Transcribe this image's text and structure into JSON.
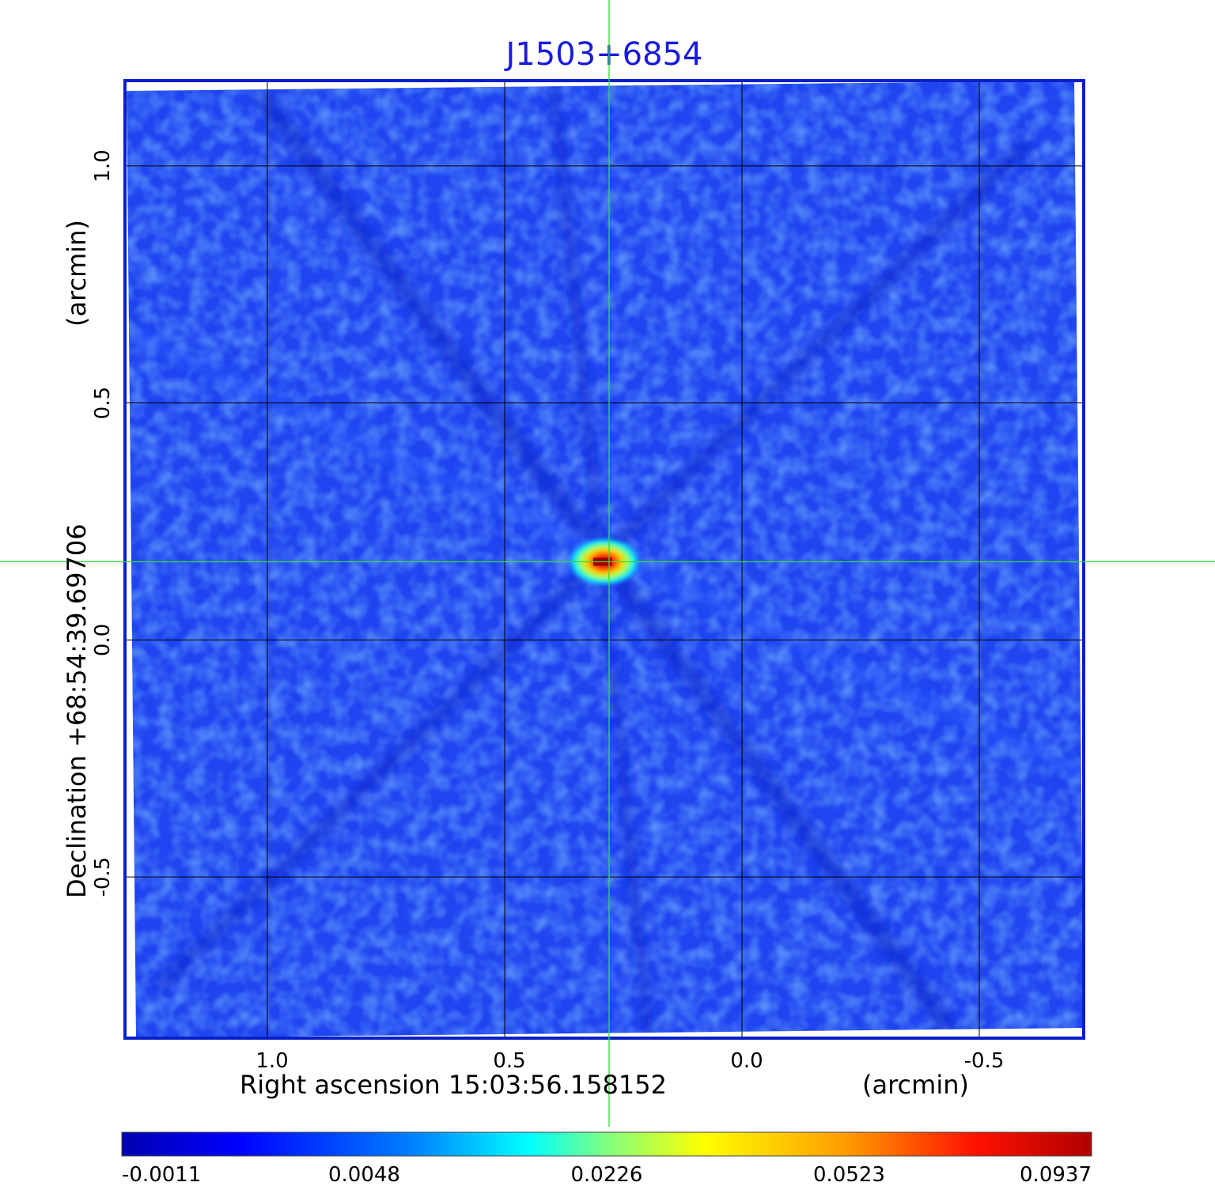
{
  "chart_data": {
    "type": "heatmap",
    "title": "J1503+6854",
    "xlabel": "Right ascension  15:03:56.158152",
    "xlabel_unit": "(arcmin)",
    "ylabel": "Declination  +68:54:39.69706",
    "ylabel_unit": "(arcmin)",
    "x_ticks": [
      "1.0",
      "0.5",
      "0.0",
      "-0.5"
    ],
    "x_tick_values": [
      1.0,
      0.5,
      0.0,
      -0.5
    ],
    "y_ticks": [
      "1.0",
      "0.5",
      "0.0",
      "-0.5"
    ],
    "y_tick_values": [
      1.0,
      0.5,
      0.0,
      -0.5
    ],
    "xlim": [
      1.3,
      -0.72
    ],
    "ylim": [
      -0.84,
      1.18
    ],
    "grid": true,
    "crosshair": {
      "x": 0.28,
      "y": 0.165,
      "color": "#33dd33"
    },
    "source": {
      "x": 0.29,
      "y": 0.165,
      "peak": 0.0937
    },
    "colorbar": {
      "colormap": "jet",
      "ticks": [
        "-0.0011",
        "0.0048",
        "0.0226",
        "0.0523",
        "0.0937"
      ],
      "min": -0.0011,
      "max": 0.0937
    },
    "colors": {
      "background_field": "#1e45f0",
      "frame": "#0a1fc8",
      "title": "#1a1adb"
    }
  }
}
